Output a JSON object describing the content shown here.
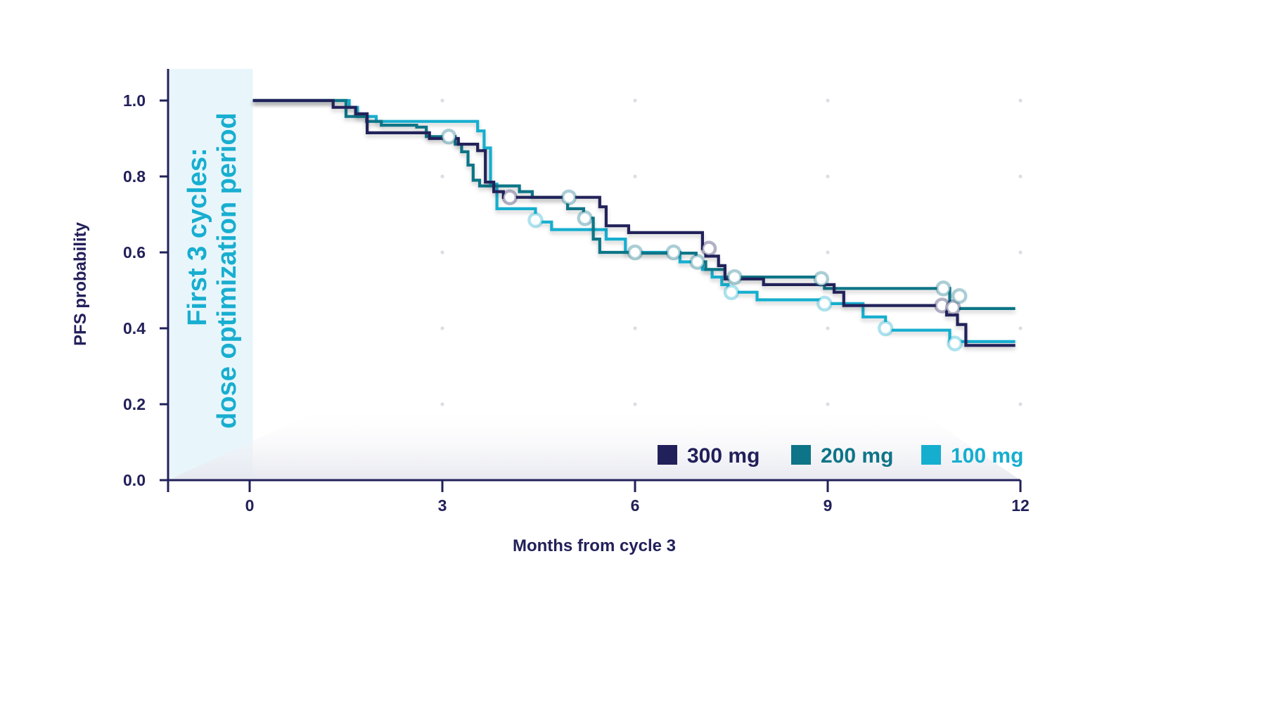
{
  "colors": {
    "axis": "#22205a",
    "text": "#22205a",
    "band_fill": "#e8f6fb",
    "band_text": "#18aed0",
    "gridpoint": "#dcdde6"
  },
  "chart_data": {
    "type": "line",
    "step": true,
    "xlabel": "Months from cycle 3",
    "ylabel": "PFS probability",
    "xlim": [
      -1.3,
      12
    ],
    "ylim": [
      0,
      1.08
    ],
    "xticks": [
      0,
      3,
      6,
      9,
      12
    ],
    "xtick_labels": [
      "0",
      "3",
      "6",
      "9",
      "12"
    ],
    "yticks": [
      0,
      0.2,
      0.4,
      0.6,
      0.8,
      1.0
    ],
    "ytick_labels": [
      "0.0",
      "0.2",
      "0.4",
      "0.6",
      "0.8",
      "1.0"
    ],
    "grid": "dotted points",
    "legend_position": "bottom-right",
    "shaded_region": {
      "x": [
        -1.3,
        0.05
      ],
      "line1": "First 3 cycles:",
      "line2": "dose optimization period"
    },
    "series": [
      {
        "name": "300 mg",
        "color": "#22205a",
        "points": [
          [
            0.05,
            1.0
          ],
          [
            1.3,
            1.0
          ],
          [
            1.3,
            0.982
          ],
          [
            1.65,
            0.982
          ],
          [
            1.65,
            0.965
          ],
          [
            1.83,
            0.965
          ],
          [
            1.83,
            0.915
          ],
          [
            2.8,
            0.915
          ],
          [
            2.8,
            0.9
          ],
          [
            3.25,
            0.9
          ],
          [
            3.25,
            0.885
          ],
          [
            3.55,
            0.885
          ],
          [
            3.55,
            0.868
          ],
          [
            3.67,
            0.868
          ],
          [
            3.67,
            0.785
          ],
          [
            3.8,
            0.785
          ],
          [
            3.8,
            0.76
          ],
          [
            3.95,
            0.76
          ],
          [
            3.95,
            0.745
          ],
          [
            5.45,
            0.745
          ],
          [
            5.45,
            0.72
          ],
          [
            5.55,
            0.72
          ],
          [
            5.55,
            0.67
          ],
          [
            5.9,
            0.67
          ],
          [
            5.9,
            0.652
          ],
          [
            7.05,
            0.652
          ],
          [
            7.05,
            0.61
          ],
          [
            7.1,
            0.61
          ],
          [
            7.1,
            0.59
          ],
          [
            7.3,
            0.59
          ],
          [
            7.3,
            0.565
          ],
          [
            7.4,
            0.565
          ],
          [
            7.4,
            0.53
          ],
          [
            8.0,
            0.53
          ],
          [
            8.0,
            0.515
          ],
          [
            9.1,
            0.515
          ],
          [
            9.1,
            0.495
          ],
          [
            9.25,
            0.495
          ],
          [
            9.25,
            0.46
          ],
          [
            10.8,
            0.46
          ],
          [
            10.8,
            0.462
          ],
          [
            10.85,
            0.462
          ],
          [
            10.85,
            0.435
          ],
          [
            11.02,
            0.435
          ],
          [
            11.02,
            0.41
          ],
          [
            11.15,
            0.41
          ],
          [
            11.15,
            0.355
          ],
          [
            11.92,
            0.355
          ]
        ],
        "censored": [
          [
            4.05,
            0.745
          ],
          [
            7.15,
            0.61
          ],
          [
            10.78,
            0.46
          ],
          [
            10.95,
            0.455
          ]
        ]
      },
      {
        "name": "200 mg",
        "color": "#0e7487",
        "points": [
          [
            0.05,
            1.0
          ],
          [
            1.5,
            1.0
          ],
          [
            1.5,
            0.958
          ],
          [
            1.82,
            0.958
          ],
          [
            1.82,
            0.945
          ],
          [
            2.05,
            0.945
          ],
          [
            2.05,
            0.935
          ],
          [
            2.6,
            0.935
          ],
          [
            2.6,
            0.93
          ],
          [
            2.75,
            0.93
          ],
          [
            2.75,
            0.905
          ],
          [
            3.2,
            0.905
          ],
          [
            3.2,
            0.885
          ],
          [
            3.3,
            0.885
          ],
          [
            3.3,
            0.865
          ],
          [
            3.4,
            0.865
          ],
          [
            3.4,
            0.83
          ],
          [
            3.48,
            0.83
          ],
          [
            3.48,
            0.79
          ],
          [
            3.58,
            0.79
          ],
          [
            3.58,
            0.775
          ],
          [
            4.2,
            0.775
          ],
          [
            4.2,
            0.76
          ],
          [
            4.4,
            0.76
          ],
          [
            4.4,
            0.745
          ],
          [
            4.95,
            0.745
          ],
          [
            4.95,
            0.715
          ],
          [
            5.2,
            0.715
          ],
          [
            5.2,
            0.69
          ],
          [
            5.35,
            0.69
          ],
          [
            5.35,
            0.635
          ],
          [
            5.45,
            0.635
          ],
          [
            5.45,
            0.6
          ],
          [
            6.0,
            0.6
          ],
          [
            6.0,
            0.598
          ],
          [
            6.95,
            0.598
          ],
          [
            6.95,
            0.575
          ],
          [
            7.1,
            0.575
          ],
          [
            7.1,
            0.555
          ],
          [
            7.4,
            0.555
          ],
          [
            7.4,
            0.535
          ],
          [
            8.95,
            0.535
          ],
          [
            8.95,
            0.505
          ],
          [
            10.9,
            0.505
          ],
          [
            10.9,
            0.452
          ],
          [
            11.92,
            0.452
          ]
        ],
        "censored": [
          [
            3.1,
            0.905
          ],
          [
            4.97,
            0.745
          ],
          [
            5.22,
            0.69
          ],
          [
            6.0,
            0.6
          ],
          [
            6.6,
            0.6
          ],
          [
            6.97,
            0.575
          ],
          [
            7.55,
            0.535
          ],
          [
            8.9,
            0.53
          ],
          [
            10.8,
            0.505
          ],
          [
            11.05,
            0.485
          ]
        ]
      },
      {
        "name": "100 mg",
        "color": "#16aecf",
        "points": [
          [
            0.05,
            1.0
          ],
          [
            1.55,
            1.0
          ],
          [
            1.55,
            0.982
          ],
          [
            1.68,
            0.982
          ],
          [
            1.68,
            0.958
          ],
          [
            1.97,
            0.958
          ],
          [
            1.97,
            0.945
          ],
          [
            3.55,
            0.945
          ],
          [
            3.55,
            0.92
          ],
          [
            3.65,
            0.92
          ],
          [
            3.65,
            0.875
          ],
          [
            3.75,
            0.875
          ],
          [
            3.75,
            0.78
          ],
          [
            3.85,
            0.78
          ],
          [
            3.85,
            0.715
          ],
          [
            4.45,
            0.715
          ],
          [
            4.45,
            0.68
          ],
          [
            4.7,
            0.68
          ],
          [
            4.7,
            0.66
          ],
          [
            5.55,
            0.66
          ],
          [
            5.55,
            0.635
          ],
          [
            5.85,
            0.635
          ],
          [
            5.85,
            0.6
          ],
          [
            6.7,
            0.6
          ],
          [
            6.7,
            0.575
          ],
          [
            7.05,
            0.575
          ],
          [
            7.05,
            0.555
          ],
          [
            7.2,
            0.555
          ],
          [
            7.2,
            0.535
          ],
          [
            7.35,
            0.535
          ],
          [
            7.35,
            0.515
          ],
          [
            7.45,
            0.515
          ],
          [
            7.45,
            0.495
          ],
          [
            7.9,
            0.495
          ],
          [
            7.9,
            0.475
          ],
          [
            8.9,
            0.475
          ],
          [
            8.9,
            0.465
          ],
          [
            9.55,
            0.465
          ],
          [
            9.55,
            0.43
          ],
          [
            9.9,
            0.43
          ],
          [
            9.9,
            0.395
          ],
          [
            10.9,
            0.395
          ],
          [
            10.9,
            0.365
          ],
          [
            11.92,
            0.365
          ]
        ],
        "censored": [
          [
            4.45,
            0.685
          ],
          [
            7.5,
            0.495
          ],
          [
            8.95,
            0.465
          ],
          [
            9.9,
            0.4
          ],
          [
            10.98,
            0.36
          ]
        ]
      }
    ]
  }
}
